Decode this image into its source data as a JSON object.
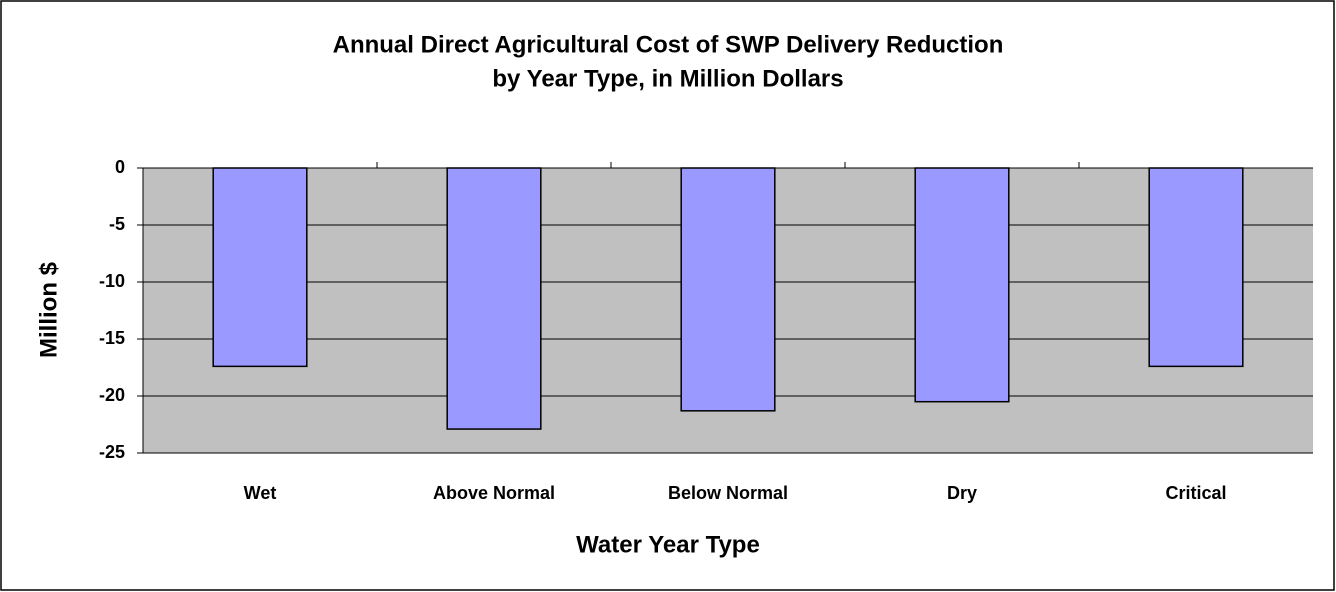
{
  "chart_data": {
    "type": "bar",
    "title": [
      "Annual Direct Agricultural Cost of SWP Delivery Reduction",
      "by Year Type, in Million Dollars"
    ],
    "x_label": "Water Year Type",
    "y_label": "Million $",
    "categories": [
      "Wet",
      "Above Normal",
      "Below Normal",
      "Dry",
      "Critical"
    ],
    "values": [
      -17.4,
      -22.9,
      -21.3,
      -20.5,
      -17.4
    ],
    "color": "#9999ff",
    "ylim": [
      -25,
      0
    ],
    "yticks": [
      0,
      -5,
      -10,
      -15,
      -20,
      -25
    ],
    "grid": true
  }
}
